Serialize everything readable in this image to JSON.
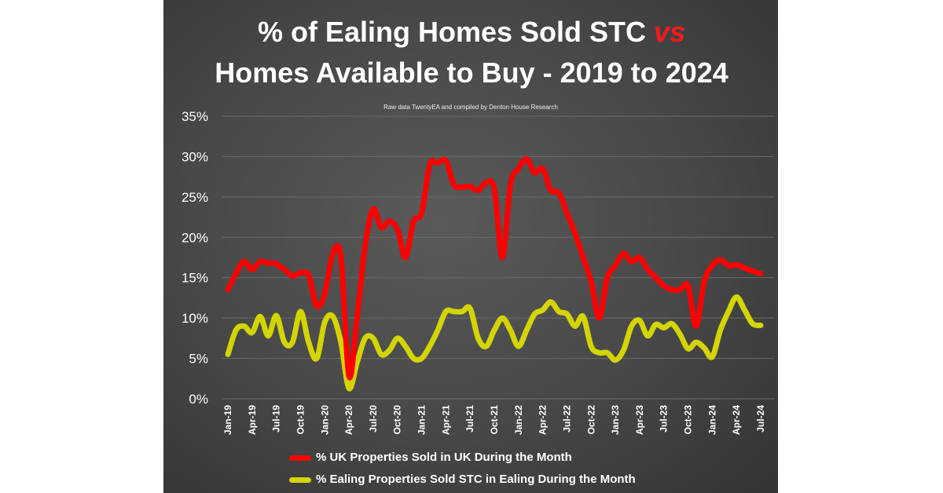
{
  "title_line1_pre": "% of Ealing Homes Sold STC ",
  "title_line1_vs": "vs",
  "title_line2": "Homes Available to Buy - 2019 to 2024",
  "subtitle": "Raw data TwentyEA and compiled by Denton House Research",
  "chart_data": {
    "type": "line",
    "title": "% of Ealing Homes Sold STC vs Homes Available to Buy - 2019 to 2024",
    "subtitle": "Raw data TwentyEA and compiled by Denton House Research",
    "ylim": [
      0,
      35
    ],
    "yticks": [
      "0%",
      "5%",
      "10%",
      "15%",
      "20%",
      "25%",
      "30%",
      "35%"
    ],
    "ytick_values": [
      0,
      5,
      10,
      15,
      20,
      25,
      30,
      35
    ],
    "xtick_labels": [
      "Jan-19",
      "Apr-19",
      "Jul-19",
      "Oct-19",
      "Jan-20",
      "Apr-20",
      "Jul-20",
      "Oct-20",
      "Jan-21",
      "Apr-21",
      "Jul-21",
      "Oct-21",
      "Jan-22",
      "Apr-22",
      "Jul-22",
      "Oct-22",
      "Jan-23",
      "Apr-23",
      "Jul-23",
      "Oct-23",
      "Jan-24",
      "Apr-24",
      "Jul-24"
    ],
    "x_start": "Jan-19",
    "x_end": "Jul-24",
    "grid": true,
    "legend_position": "bottom",
    "series": [
      {
        "name": "% UK Properties Sold in UK During the Month",
        "color": "#ff0000",
        "values": [
          13.5,
          15.5,
          17,
          16,
          17,
          16.8,
          16.7,
          16,
          15.2,
          15.6,
          15.3,
          11.5,
          13,
          18,
          17.5,
          2.8,
          10,
          19,
          23.5,
          21.2,
          22,
          21,
          17.5,
          22,
          23,
          29,
          29.2,
          29.5,
          26.5,
          26.2,
          26.3,
          25.8,
          26.8,
          26,
          17.5,
          26.5,
          28.5,
          29.7,
          28,
          28.5,
          25.8,
          25.5,
          23,
          20.5,
          17.5,
          14.5,
          10,
          15,
          16.5,
          18,
          17,
          17.5,
          16,
          15,
          14,
          13.5,
          13.5,
          14,
          9,
          14.5,
          16.5,
          17.2,
          16.5,
          16.6,
          16.2,
          15.8,
          15.5
        ]
      },
      {
        "name": "% Ealing Properties Sold STC in Ealing During the Month",
        "color": "#d4d400",
        "values": [
          5.5,
          8.5,
          9,
          8.2,
          10.2,
          7.8,
          10.3,
          7,
          7,
          10.8,
          7,
          5,
          9.5,
          10.2,
          7,
          1.3,
          4.5,
          7.5,
          7.5,
          5.5,
          6,
          7.5,
          6.5,
          5,
          5,
          6.5,
          8.5,
          10.8,
          10.8,
          10.8,
          11.2,
          7.5,
          6.5,
          8.5,
          10,
          8.5,
          6.5,
          8.5,
          10.5,
          11,
          12,
          10.8,
          10.5,
          9,
          10.2,
          6.5,
          5.7,
          5.7,
          4.8,
          6,
          9,
          9.7,
          7.8,
          9.2,
          8.8,
          9.3,
          8,
          6.2,
          7,
          6.3,
          5.2,
          8.5,
          10.8,
          12.6,
          11,
          9.3,
          9.1
        ]
      }
    ]
  }
}
